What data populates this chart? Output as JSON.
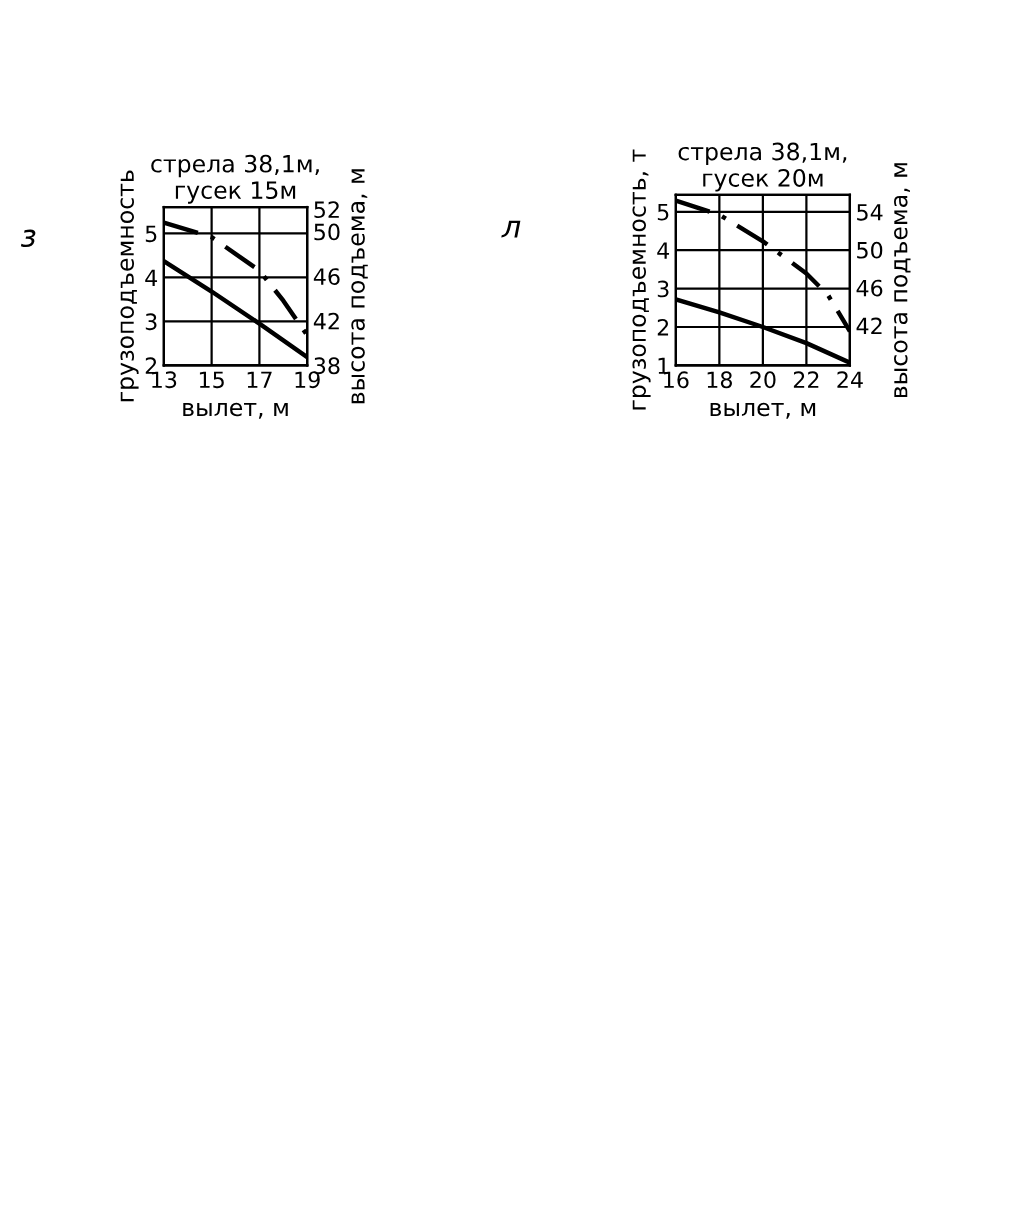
{
  "chart_data": [
    {
      "type": "line",
      "title": "стрела 38,1м,\nгусек 15м",
      "xlabel": "вылет, м",
      "ylabel": "грузоподъемность",
      "y2label": "высота подъема, м",
      "annotations": [
        "з"
      ],
      "grid": true,
      "xlim": [
        13,
        19
      ],
      "xticks": [
        13,
        15,
        17,
        19
      ],
      "ylim": [
        2,
        5.6
      ],
      "yticks": [
        2,
        3,
        4,
        5
      ],
      "y2lim": [
        38,
        52.2
      ],
      "y2ticks": [
        38,
        42,
        46,
        50,
        52
      ],
      "x": [
        13,
        15,
        17,
        19
      ],
      "series": [
        {
          "color": "#000000",
          "line_style": "solid",
          "values": [
            4.37,
            3.68,
            2.95,
            2.19
          ]
        },
        {
          "color": "#000000",
          "line_style": "dashed",
          "axis": "y2",
          "x": [
            13,
            15,
            17,
            18,
            19
          ],
          "values": [
            50.8,
            49.5,
            46.5,
            43.8,
            40.7
          ]
        }
      ]
    },
    {
      "type": "line",
      "title": "стрела 38,1м,\nгусек 20м",
      "xlabel": "вылет, м",
      "ylabel": "грузоподъемность, т",
      "y2label": "высота подъема, м",
      "annotations": [
        "л"
      ],
      "grid": true,
      "xlim": [
        16,
        24
      ],
      "xticks": [
        16,
        18,
        20,
        22,
        24
      ],
      "ylim": [
        1,
        5.44
      ],
      "yticks": [
        1,
        2,
        3,
        4,
        5
      ],
      "y2lim": [
        37.8,
        55.8
      ],
      "y2ticks": [
        42,
        46,
        50,
        54
      ],
      "x": [
        16,
        18,
        20,
        22,
        24
      ],
      "series": [
        {
          "color": "#000000",
          "line_style": "solid",
          "values": [
            2.72,
            2.38,
            2.0,
            1.58,
            1.07
          ]
        },
        {
          "color": "#000000",
          "line_style": "dashed",
          "axis": "y2",
          "x": [
            16,
            18,
            20,
            22,
            23,
            24
          ],
          "values": [
            55.2,
            53.7,
            50.9,
            47.5,
            45.2,
            41.4
          ]
        }
      ]
    }
  ]
}
